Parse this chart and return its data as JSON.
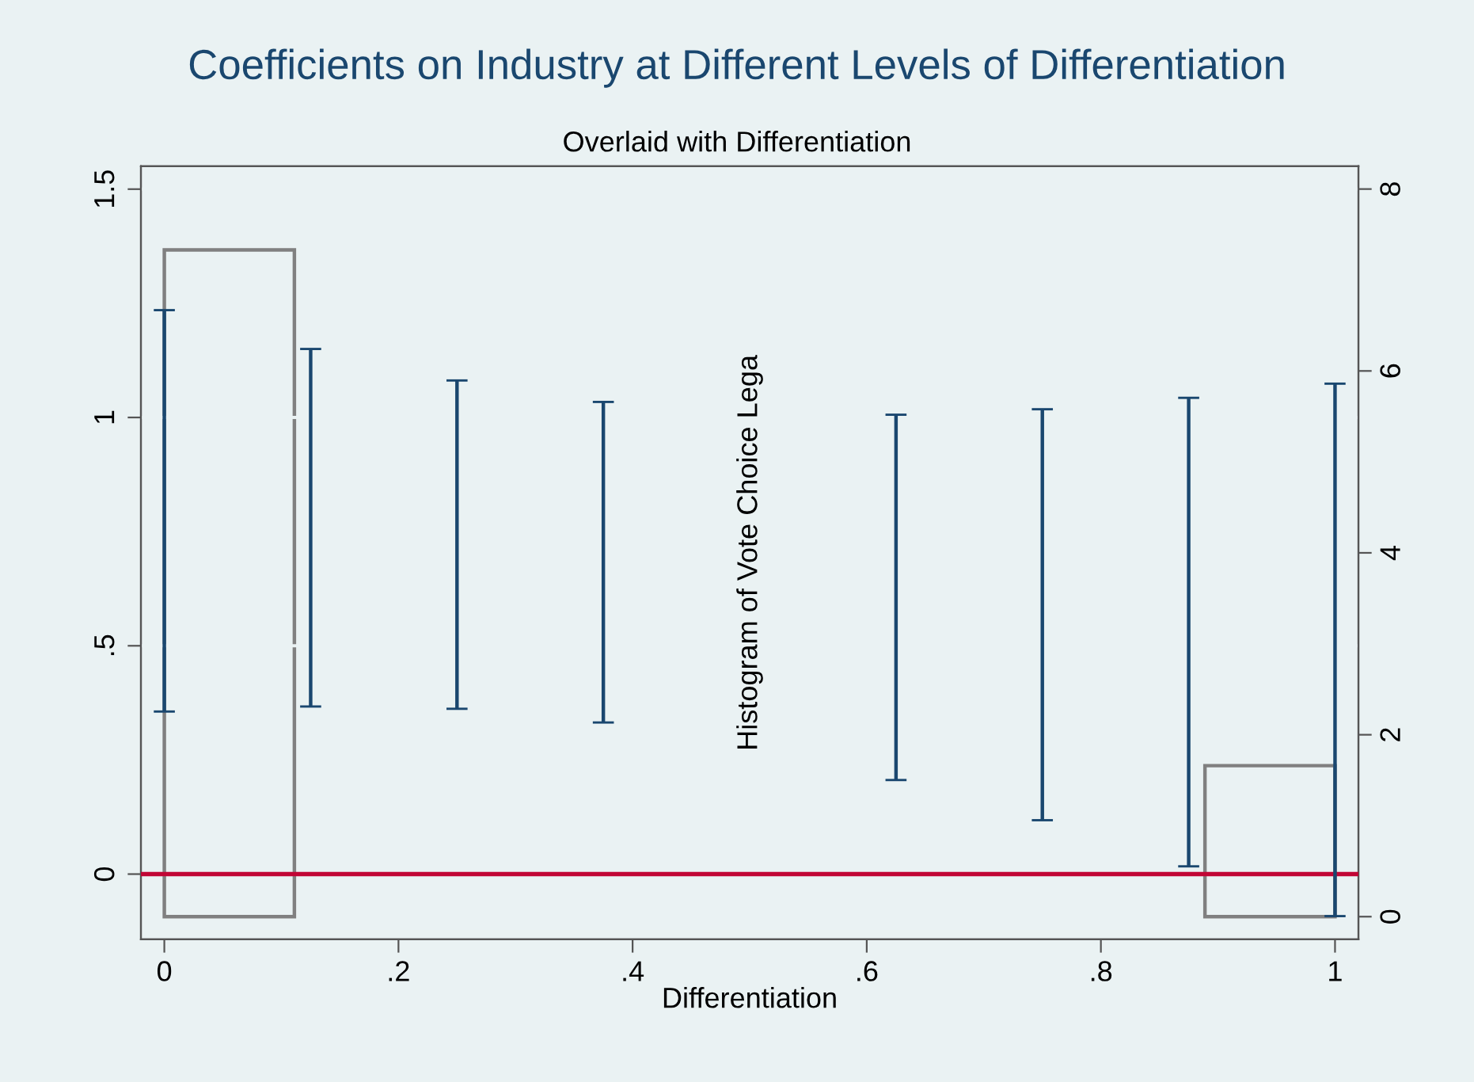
{
  "chart_data": {
    "type": "histogram",
    "title": "Coefficients on Industry at Different Levels of Differentiation",
    "subtitle": "Overlaid with Differentiation",
    "xlabel": "Differentiation",
    "annotations": [
      "Histogram of Vote Choice Lega"
    ],
    "xlim": [
      -0.02,
      1.02
    ],
    "xticks": [
      0,
      {
        "value": 0.2,
        "label": ".2"
      },
      {
        "value": 0.4,
        "label": ".4"
      },
      {
        "value": 0.6,
        "label": ".6"
      },
      {
        "value": 0.8,
        "label": ".8"
      },
      1
    ],
    "ylim": [
      -0.143,
      1.55
    ],
    "yticks": [
      0,
      {
        "value": 0.5,
        "label": ".5"
      },
      1,
      1.5
    ],
    "y2lim": [
      -0.25,
      8.25
    ],
    "y2ticks": [
      0,
      2,
      4,
      6,
      8
    ],
    "grid": "y",
    "ref_lines": [
      {
        "axis": "y",
        "value": 0,
        "color": "#c10534"
      }
    ],
    "series": [
      {
        "type": "bar",
        "color": "#1a476f",
        "x": [
          0,
          0.125,
          0.25,
          0.375,
          0.625,
          0.75,
          0.875,
          1
        ],
        "base": [
          0.356,
          0.367,
          0.362,
          0.332,
          0.206,
          0.118,
          0.017,
          -0.092
        ],
        "values": [
          0.879,
          0.783,
          0.719,
          0.702,
          0.8,
          0.9,
          1.026,
          1.166
        ]
      },
      {
        "axis": "y2",
        "color": "#808080",
        "bins": [
          0,
          0.1111,
          0.2222,
          0.3333,
          0.4444,
          0.5556,
          0.6667,
          0.7778,
          0.8889,
          1
        ],
        "values": [
          7.33,
          0,
          0,
          0,
          0,
          0,
          0,
          0,
          1.66
        ]
      }
    ]
  }
}
